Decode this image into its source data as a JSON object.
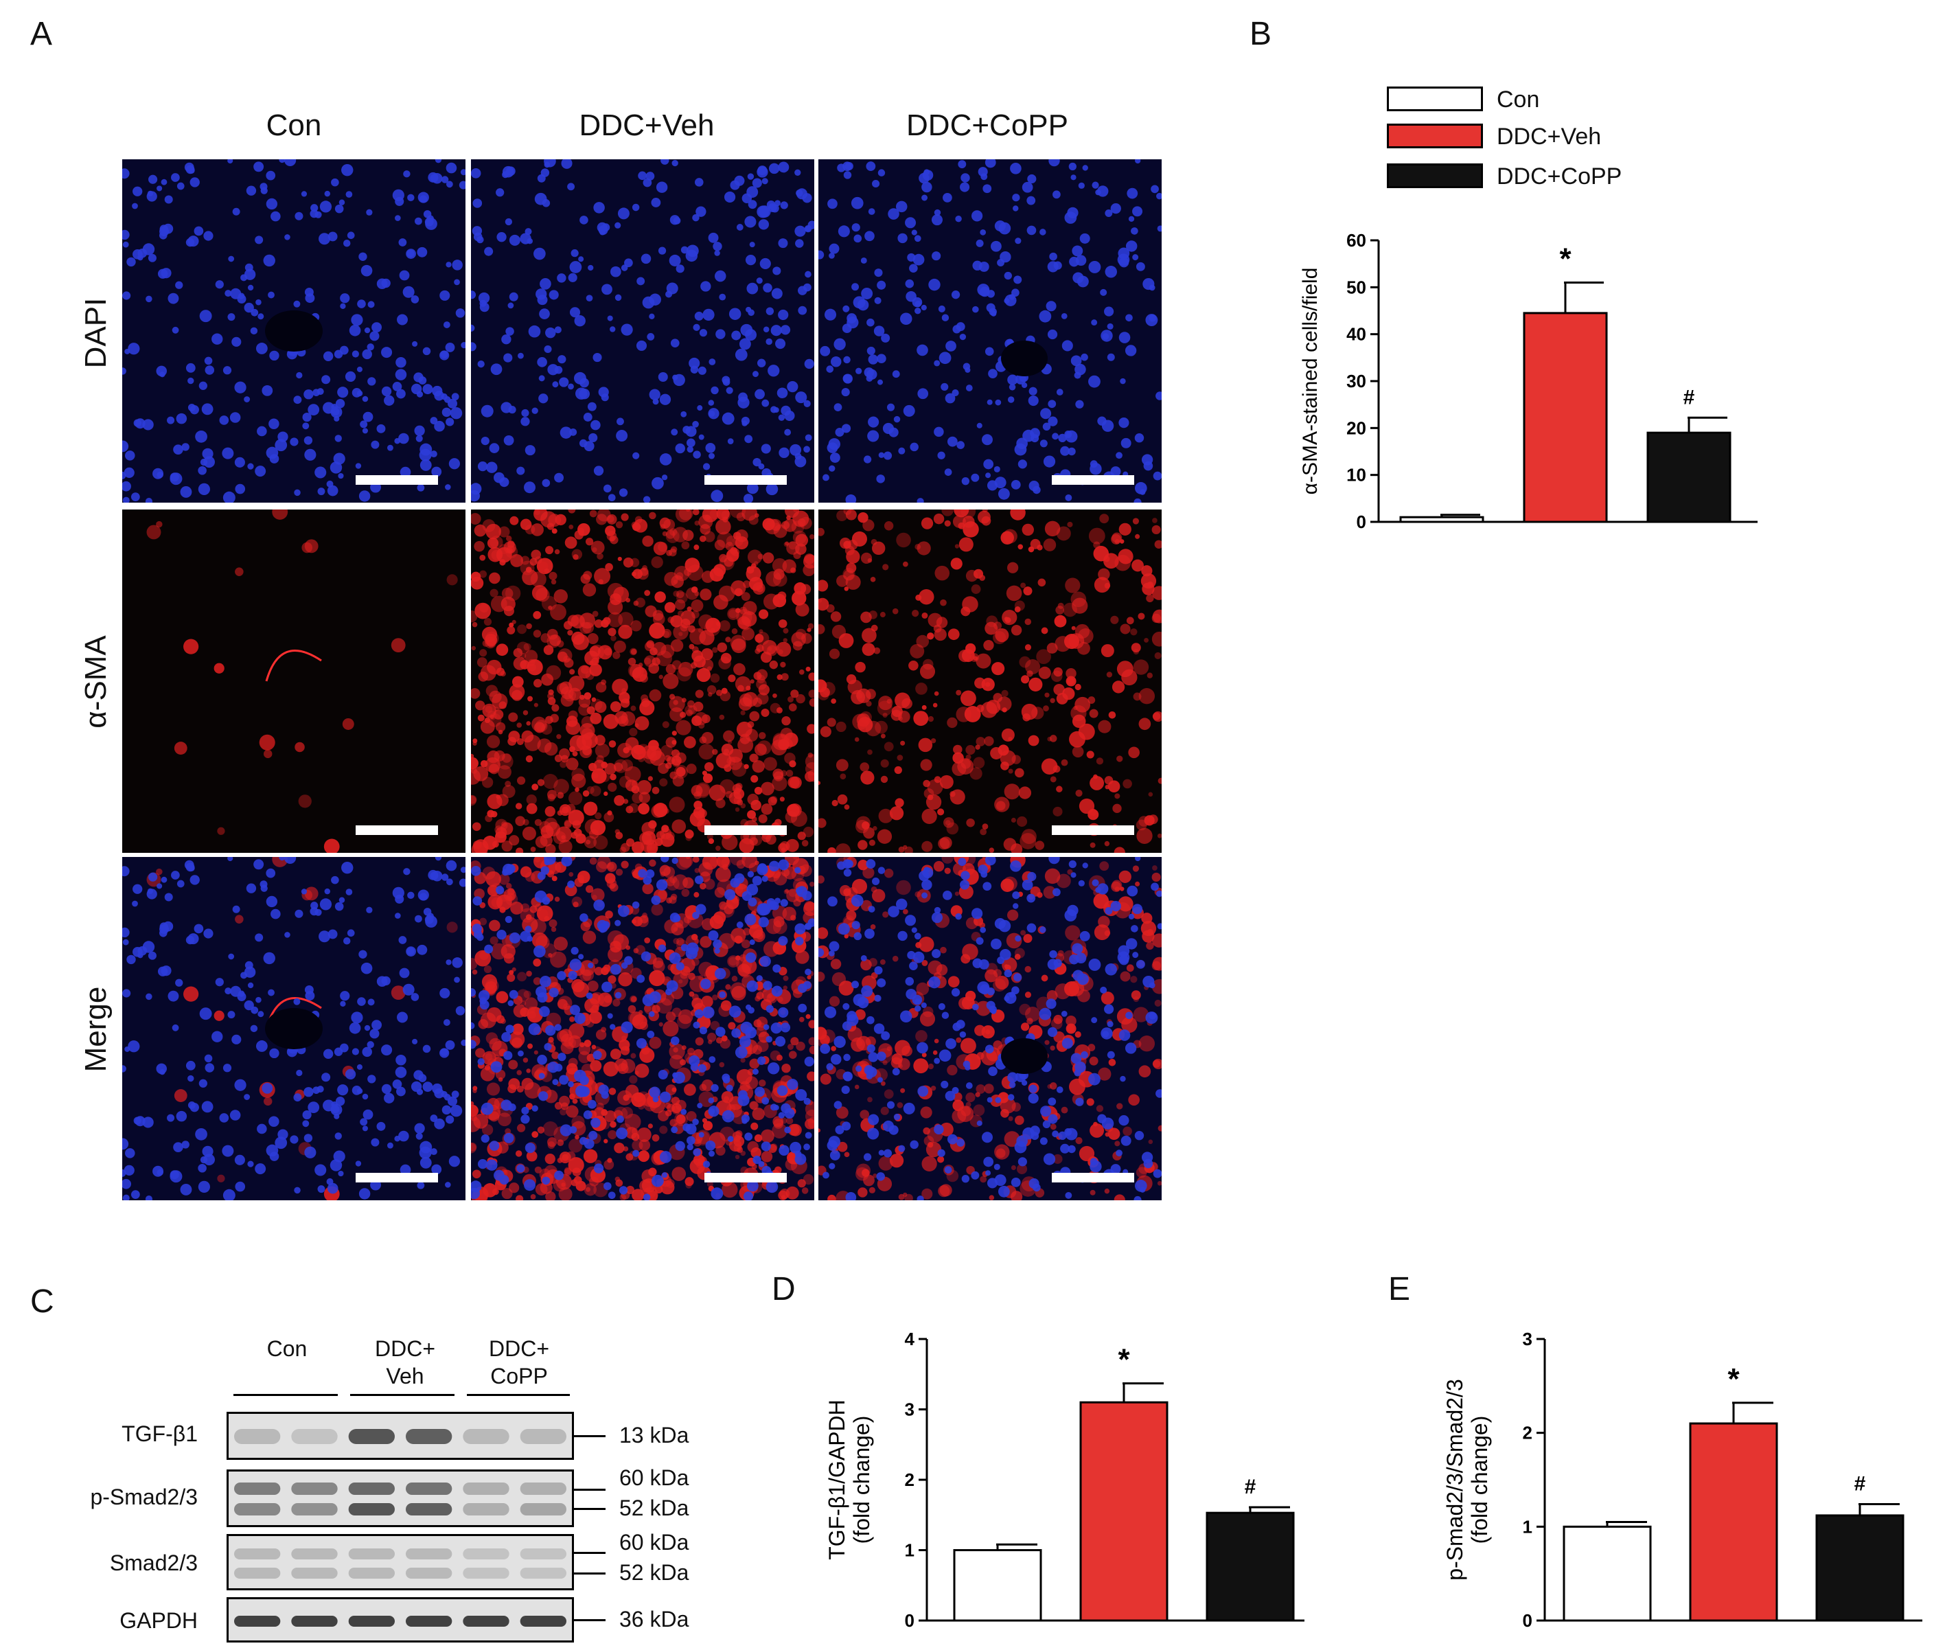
{
  "panels": {
    "A": "A",
    "B": "B",
    "C": "C",
    "D": "D",
    "E": "E"
  },
  "panelA": {
    "columns": [
      "Con",
      "DDC+Veh",
      "DDC+CoPP"
    ],
    "rows": [
      "DAPI",
      "α-SMA",
      "Merge"
    ]
  },
  "legend": [
    {
      "label": "Con",
      "color": "#ffffff"
    },
    {
      "label": "DDC+Veh",
      "color": "#e53430"
    },
    {
      "label": "DDC+CoPP",
      "color": "#111111"
    }
  ],
  "blot": {
    "groups": [
      {
        "line1": "",
        "line2": "Con"
      },
      {
        "line1": "DDC+",
        "line2": "Veh"
      },
      {
        "line1": "DDC+",
        "line2": "CoPP"
      }
    ],
    "rows": [
      {
        "label": "TGF-β1",
        "kda": [
          "13 kDa"
        ]
      },
      {
        "label": "p-Smad2/3",
        "kda": [
          "60 kDa",
          "52 kDa"
        ]
      },
      {
        "label": "Smad2/3",
        "kda": [
          "60 kDa",
          "52 kDa"
        ]
      },
      {
        "label": "GAPDH",
        "kda": [
          "36 kDa"
        ]
      }
    ]
  },
  "chart_data": [
    {
      "panel": "B",
      "type": "bar",
      "categories": [
        "Con",
        "DDC+Veh",
        "DDC+CoPP"
      ],
      "values": [
        1,
        44.5,
        19
      ],
      "errors": [
        0.5,
        6.5,
        3.2
      ],
      "colors": [
        "#ffffff",
        "#e53430",
        "#111111"
      ],
      "annotations": [
        "",
        "*",
        "#"
      ],
      "ylabel": "α-SMA-stained cells/field",
      "ylim": [
        0,
        60
      ],
      "yticks": [
        0,
        10,
        20,
        30,
        40,
        50,
        60
      ]
    },
    {
      "panel": "D",
      "type": "bar",
      "categories": [
        "Con",
        "DDC+Veh",
        "DDC+CoPP"
      ],
      "values": [
        1.0,
        3.1,
        1.53
      ],
      "errors": [
        0.08,
        0.27,
        0.08
      ],
      "colors": [
        "#ffffff",
        "#e53430",
        "#111111"
      ],
      "annotations": [
        "",
        "*",
        "#"
      ],
      "ylabel": "TGF-β1/GAPDH",
      "ylabel2": "(fold change)",
      "ylim": [
        0,
        4
      ],
      "yticks": [
        0,
        1,
        2,
        3,
        4
      ]
    },
    {
      "panel": "E",
      "type": "bar",
      "categories": [
        "Con",
        "DDC+Veh",
        "DDC+CoPP"
      ],
      "values": [
        1.0,
        2.1,
        1.12
      ],
      "errors": [
        0.05,
        0.22,
        0.12
      ],
      "colors": [
        "#ffffff",
        "#e53430",
        "#111111"
      ],
      "annotations": [
        "",
        "*",
        "#"
      ],
      "ylabel": "p-Smad2/3/Smad2/3",
      "ylabel2": "(fold change)",
      "ylim": [
        0,
        3
      ],
      "yticks": [
        0,
        1,
        2,
        3
      ]
    }
  ]
}
